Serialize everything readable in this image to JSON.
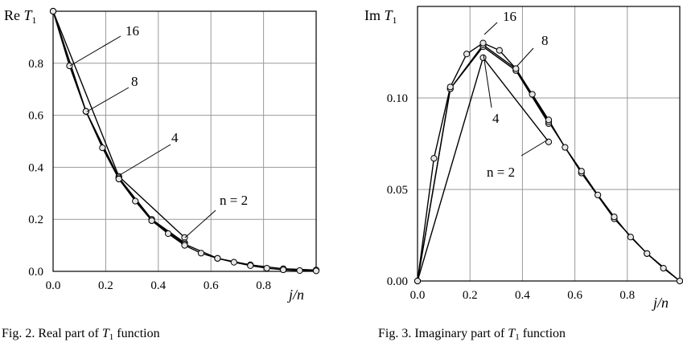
{
  "chart_data": [
    {
      "type": "line",
      "title": "",
      "xlabel": "j/n",
      "ylabel": "Re T1",
      "ylabel_main": "Re ",
      "ylabel_italic": "T",
      "ylabel_sub": "1",
      "xlabel_j": "j",
      "xlabel_n": "/n",
      "xlim": [
        0,
        1.0
      ],
      "ylim": [
        0,
        1.0
      ],
      "grid": true,
      "x_ticks": [
        "0.0",
        "0.2",
        "0.4",
        "0.6",
        "0.8"
      ],
      "x_tick_values": [
        0,
        0.2,
        0.4,
        0.6,
        0.8
      ],
      "y_ticks": [
        "0.0",
        "0.2",
        "0.4",
        "0.6",
        "0.8"
      ],
      "y_tick_values": [
        0,
        0.2,
        0.4,
        0.6,
        0.8
      ],
      "series": [
        {
          "name": "n = 2",
          "x": [
            0,
            0.25,
            0.5
          ],
          "y": [
            1.0,
            0.365,
            0.13
          ]
        },
        {
          "name": "4",
          "x": [
            0,
            0.125,
            0.25,
            0.375,
            0.5
          ],
          "y": [
            1.0,
            0.615,
            0.36,
            0.2,
            0.11
          ]
        },
        {
          "name": "8",
          "x": [
            0,
            0.125,
            0.25,
            0.375,
            0.5,
            0.625,
            0.75,
            0.875,
            1.0
          ],
          "y": [
            1.0,
            0.615,
            0.355,
            0.195,
            0.105,
            0.05,
            0.025,
            0.01,
            0.005
          ]
        },
        {
          "name": "16",
          "x": [
            0,
            0.0625,
            0.125,
            0.1875,
            0.25,
            0.3125,
            0.375,
            0.4375,
            0.5,
            0.5625,
            0.625,
            0.6875,
            0.75,
            0.8125,
            0.875,
            0.9375,
            1.0
          ],
          "y": [
            1.0,
            0.79,
            0.615,
            0.475,
            0.355,
            0.27,
            0.195,
            0.145,
            0.1,
            0.07,
            0.05,
            0.035,
            0.022,
            0.012,
            0.006,
            0.003,
            0.002
          ]
        }
      ],
      "annotations": [
        {
          "text": "16",
          "series": "16"
        },
        {
          "text": "8",
          "series": "8"
        },
        {
          "text": "4",
          "series": "4"
        },
        {
          "text": "n = 2",
          "series": "n = 2"
        }
      ],
      "caption": "Fig. 2. Real part of T1 function",
      "caption_pre": "Fig. 2. Real part of ",
      "caption_italic": "T",
      "caption_sub": "1",
      "caption_post": " function"
    },
    {
      "type": "line",
      "title": "",
      "xlabel": "j/n",
      "ylabel": "Im T1",
      "ylabel_main": "Im ",
      "ylabel_italic": "T",
      "ylabel_sub": "1",
      "xlabel_j": "j",
      "xlabel_n": "/n",
      "xlim": [
        0,
        1.0
      ],
      "ylim": [
        0,
        0.15
      ],
      "grid": true,
      "x_ticks": [
        "0.0",
        "0.2",
        "0.4",
        "0.6",
        "0.8"
      ],
      "x_tick_values": [
        0,
        0.2,
        0.4,
        0.6,
        0.8
      ],
      "y_ticks": [
        "0.00",
        "0.05",
        "0.10"
      ],
      "y_tick_values": [
        0,
        0.05,
        0.1
      ],
      "series": [
        {
          "name": "n = 2",
          "x": [
            0,
            0.25,
            0.5
          ],
          "y": [
            0.0,
            0.122,
            0.076
          ]
        },
        {
          "name": "4",
          "x": [
            0,
            0.125,
            0.25,
            0.375,
            0.5
          ],
          "y": [
            0.0,
            0.105,
            0.128,
            0.115,
            0.086
          ]
        },
        {
          "name": "8",
          "x": [
            0,
            0.125,
            0.25,
            0.375,
            0.5,
            0.625,
            0.75,
            0.875,
            1.0
          ],
          "y": [
            0.0,
            0.105,
            0.129,
            0.116,
            0.087,
            0.059,
            0.034,
            0.015,
            0.0
          ]
        },
        {
          "name": "16",
          "x": [
            0,
            0.0625,
            0.125,
            0.1875,
            0.25,
            0.3125,
            0.375,
            0.4375,
            0.5,
            0.5625,
            0.625,
            0.6875,
            0.75,
            0.8125,
            0.875,
            0.9375,
            1.0
          ],
          "y": [
            0.0,
            0.067,
            0.106,
            0.124,
            0.13,
            0.126,
            0.116,
            0.102,
            0.088,
            0.073,
            0.06,
            0.047,
            0.035,
            0.024,
            0.015,
            0.007,
            0.0
          ]
        }
      ],
      "annotations": [
        {
          "text": "16",
          "series": "16"
        },
        {
          "text": "8",
          "series": "8"
        },
        {
          "text": "4",
          "series": "4"
        },
        {
          "text": "n = 2",
          "series": "n = 2"
        }
      ],
      "caption": "Fig. 3. Imaginary part of T1 function",
      "caption_pre": "Fig. 3. Imaginary part of ",
      "caption_italic": "T",
      "caption_sub": "1",
      "caption_post": " function"
    }
  ]
}
